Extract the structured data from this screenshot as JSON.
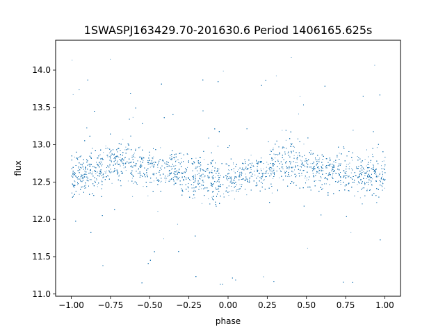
{
  "chart_data": {
    "type": "scatter",
    "title": "1SWASPJ163429.70-201630.6 Period 1406165.625s",
    "xlabel": "phase",
    "ylabel": "flux",
    "xlim": [
      -1.1,
      1.1
    ],
    "ylim": [
      10.97,
      14.4
    ],
    "xticks": [
      -1.0,
      -0.75,
      -0.5,
      -0.25,
      0.0,
      0.25,
      0.5,
      0.75,
      1.0
    ],
    "xtick_labels": [
      "−1.00",
      "−0.75",
      "−0.50",
      "−0.25",
      "0.00",
      "0.25",
      "0.50",
      "0.75",
      "1.00"
    ],
    "yticks": [
      11.0,
      11.5,
      12.0,
      12.5,
      13.0,
      13.5,
      14.0
    ],
    "ytick_labels": [
      "11.0",
      "11.5",
      "12.0",
      "12.5",
      "13.0",
      "13.5",
      "14.0"
    ],
    "grid": false,
    "legend": "none",
    "marker_color": "#1f77b4",
    "series": [
      {
        "x_range": [
          -1.0,
          1.0
        ],
        "phase_folded": true,
        "approx_points": 9000,
        "median_flux": 12.62,
        "dense_band": [
          12.3,
          13.0
        ],
        "outlier_range": [
          11.1,
          14.2
        ]
      }
    ],
    "band_profile": {
      "phase": [
        -1.0,
        -0.9,
        -0.8,
        -0.75,
        -0.7,
        -0.6,
        -0.5,
        -0.4,
        -0.3,
        -0.2,
        -0.1,
        0.0,
        0.1,
        0.2,
        0.25,
        0.3,
        0.4,
        0.5,
        0.6,
        0.7,
        0.8,
        0.9,
        1.0
      ],
      "center": [
        12.6,
        12.65,
        12.7,
        12.75,
        12.8,
        12.75,
        12.7,
        12.65,
        12.62,
        12.6,
        12.55,
        12.52,
        12.58,
        12.65,
        12.7,
        12.75,
        12.78,
        12.72,
        12.68,
        12.65,
        12.62,
        12.6,
        12.6
      ],
      "spread": [
        0.2,
        0.18,
        0.2,
        0.22,
        0.22,
        0.2,
        0.18,
        0.18,
        0.2,
        0.2,
        0.22,
        0.2,
        0.18,
        0.18,
        0.2,
        0.22,
        0.22,
        0.2,
        0.18,
        0.18,
        0.2,
        0.2,
        0.2
      ]
    }
  }
}
